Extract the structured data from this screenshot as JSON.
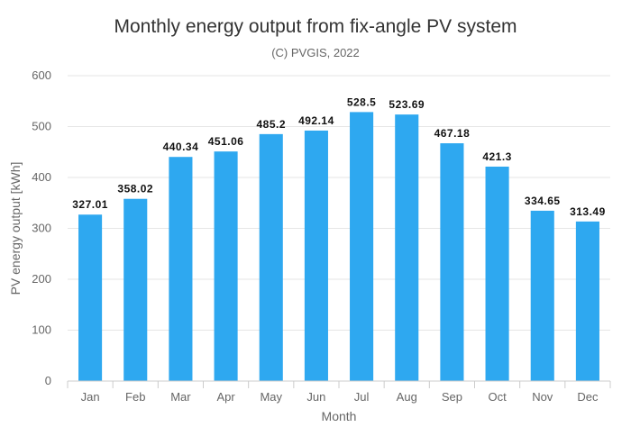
{
  "chart_data": {
    "type": "bar",
    "title": "Monthly energy output from fix-angle PV system",
    "subtitle": "(C) PVGIS, 2022",
    "xlabel": "Month",
    "ylabel": "PV energy output [kWh]",
    "categories": [
      "Jan",
      "Feb",
      "Mar",
      "Apr",
      "May",
      "Jun",
      "Jul",
      "Aug",
      "Sep",
      "Oct",
      "Nov",
      "Dec"
    ],
    "values": [
      327.01,
      358.02,
      440.34,
      451.06,
      485.2,
      492.14,
      528.5,
      523.69,
      467.18,
      421.3,
      334.65,
      313.49
    ],
    "data_labels": [
      "327.01",
      "358.02",
      "440.34",
      "451.06",
      "485.2",
      "492.14",
      "528.5",
      "523.69",
      "467.18",
      "421.3",
      "334.65",
      "313.49"
    ],
    "ylim": [
      0,
      600
    ],
    "yticks": [
      0,
      100,
      200,
      300,
      400,
      500,
      600
    ],
    "grid": true,
    "legend": "none",
    "bar_color": "#2ea8f0"
  }
}
